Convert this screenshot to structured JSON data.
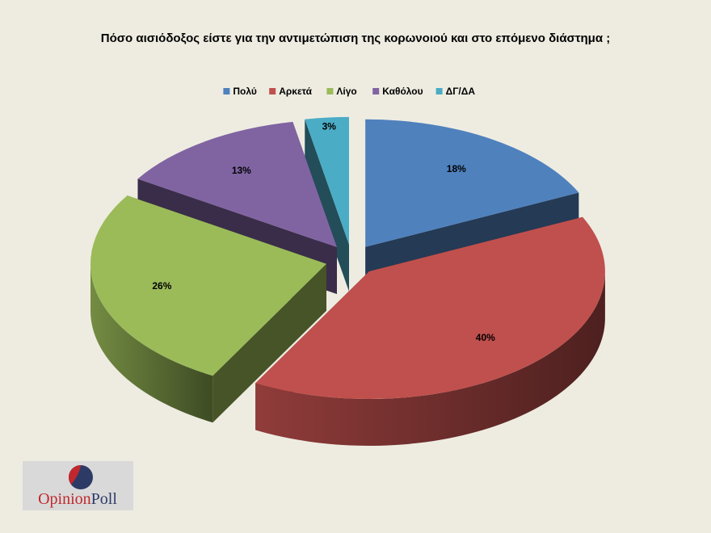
{
  "chart_data": {
    "type": "pie3d",
    "title": "Πόσο αισιόδοξος είστε για την αντιμετώπιση της κορωνοιού και στο επόμενο διάστημα ;",
    "categories": [
      "Πολύ",
      "Αρκετά",
      "Λίγο",
      "Καθόλου",
      "ΔΓ/ΔΑ"
    ],
    "values": [
      18,
      40,
      26,
      13,
      3
    ],
    "value_labels": [
      "18%",
      "40%",
      "26%",
      "13%",
      "3%"
    ],
    "colors": [
      "#4f81bd",
      "#c0504d",
      "#9bbb59",
      "#8064a2",
      "#4bacc6"
    ],
    "legend": "top"
  },
  "logo": {
    "first": "Opinion",
    "second": "Poll"
  }
}
